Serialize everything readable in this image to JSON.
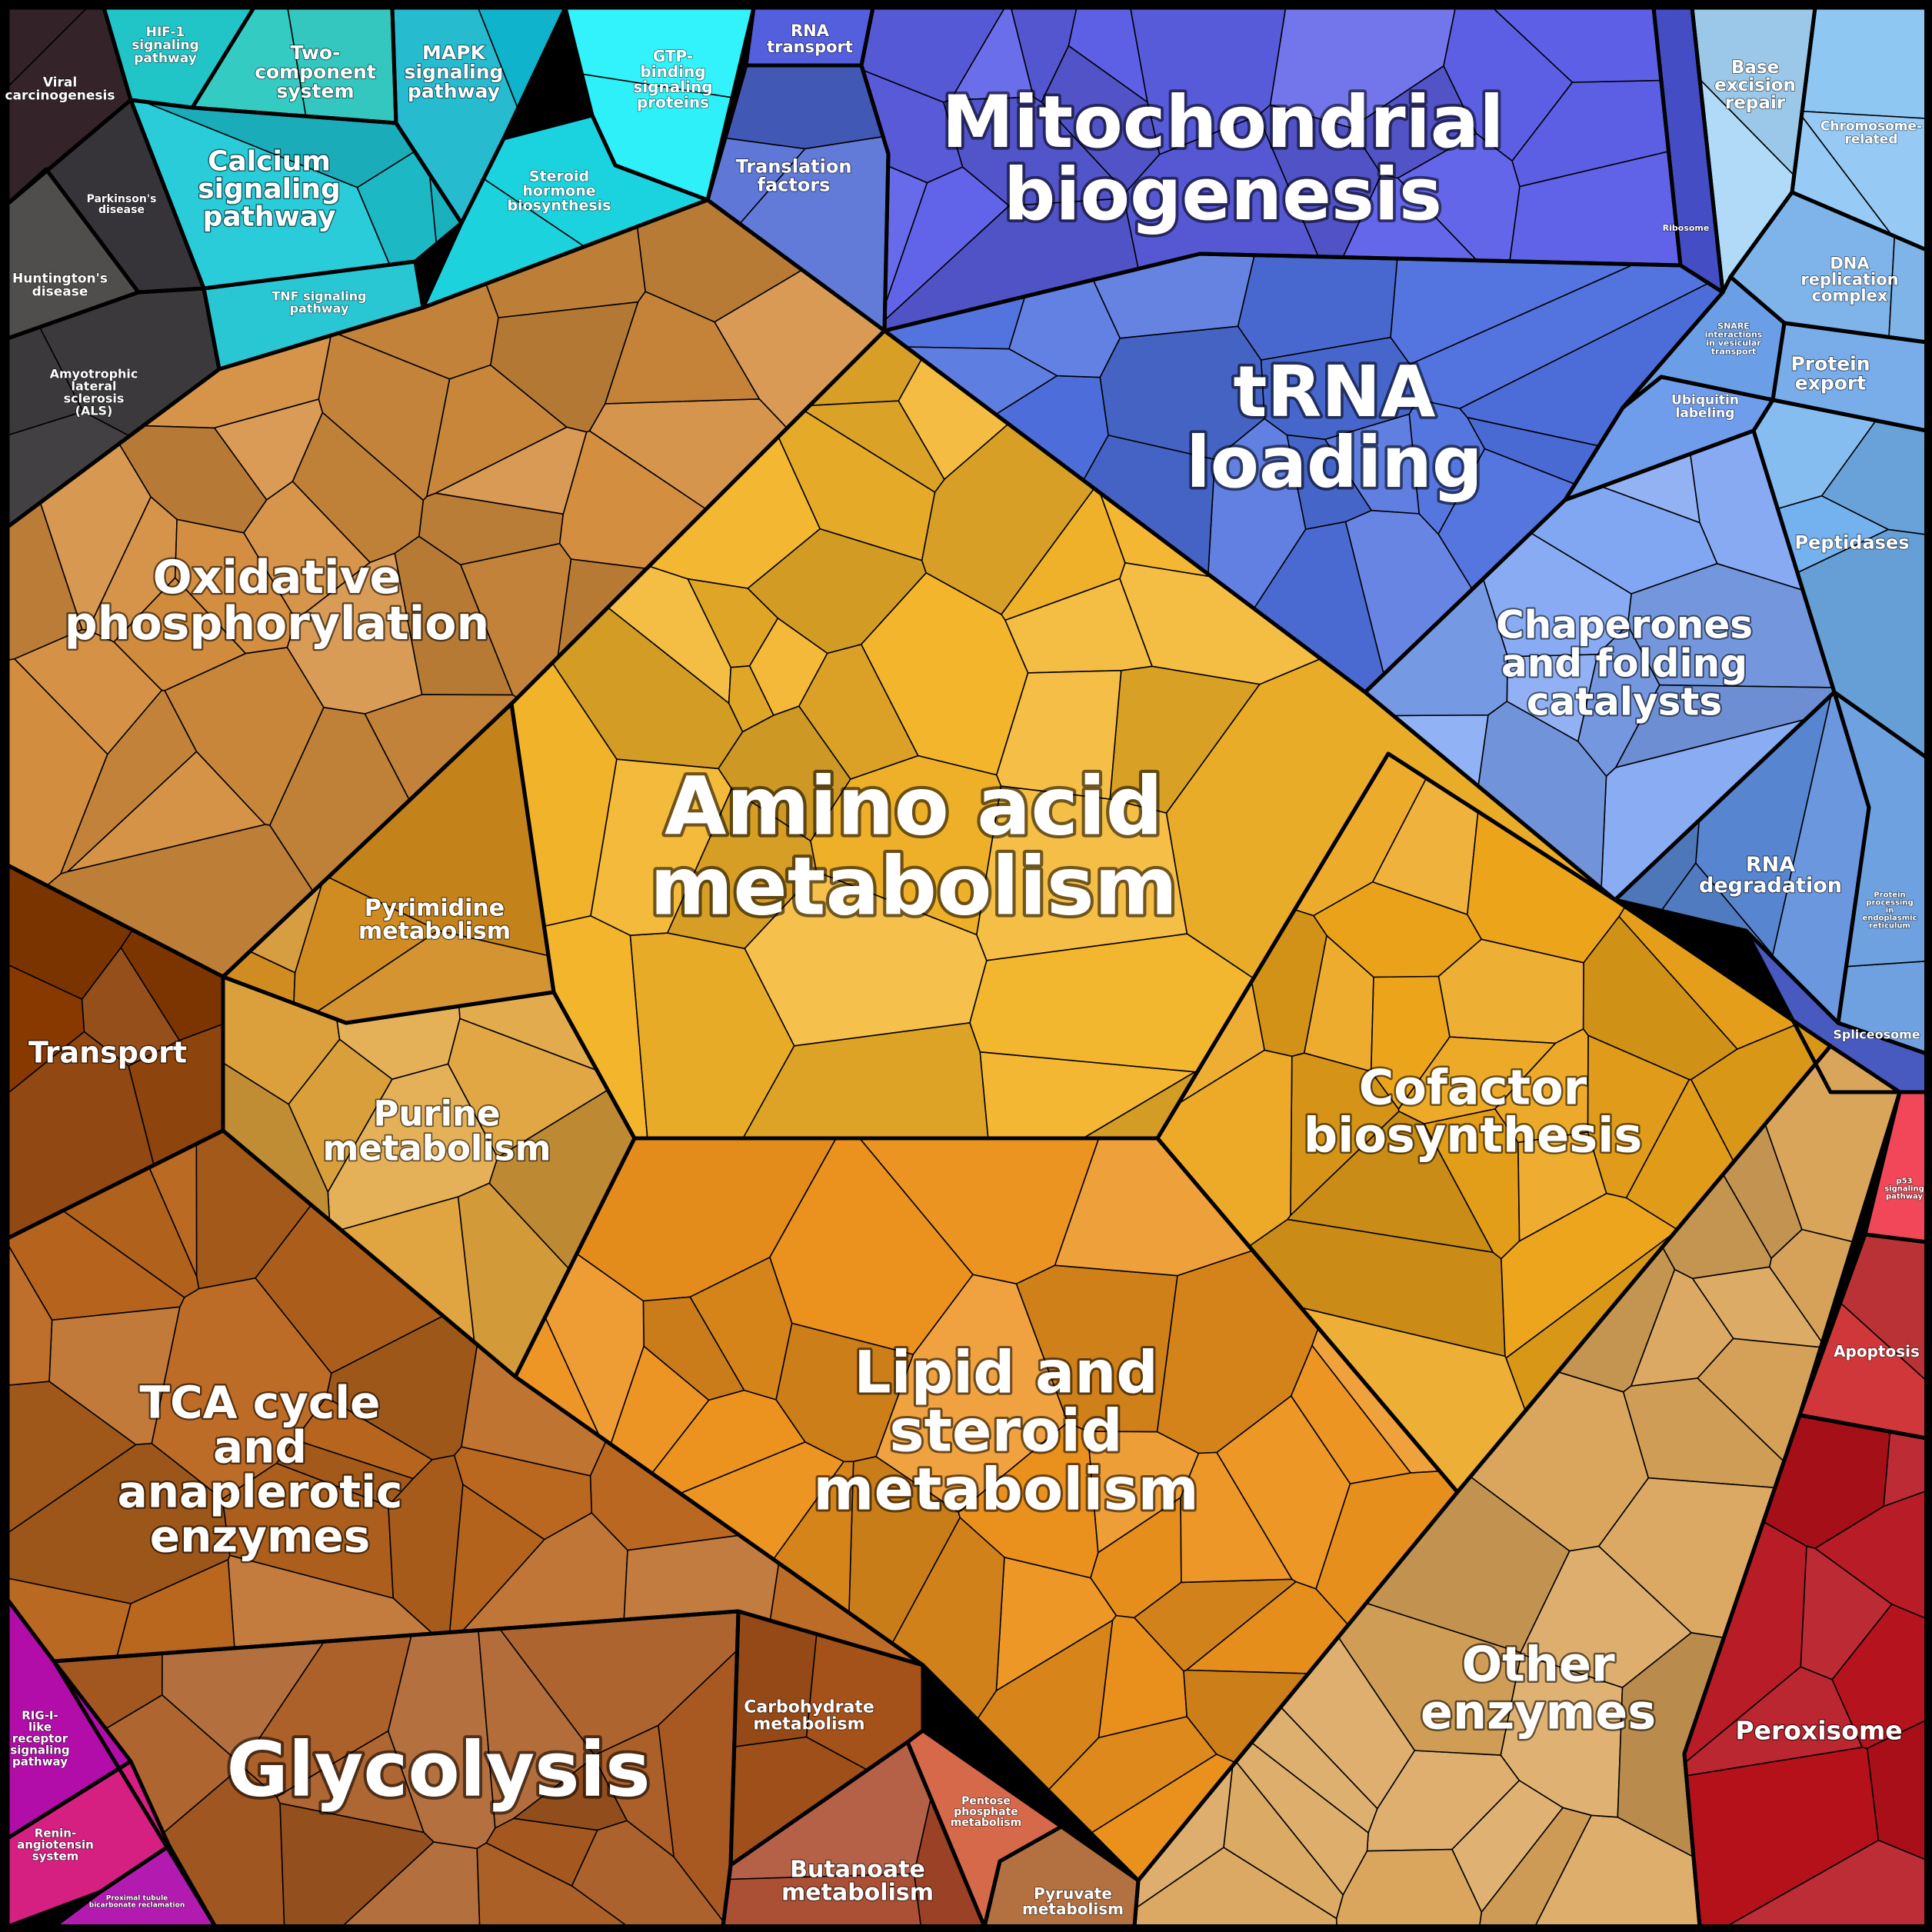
{
  "regions": [
    {
      "id": "viral-carcinogenesis",
      "color": "#3d2a30",
      "label": [
        "Viral",
        "carcinogenesis"
      ]
    },
    {
      "id": "parkinsons-disease",
      "color": "#3b393e",
      "label": [
        "Parkinson's",
        "disease"
      ]
    },
    {
      "id": "huntingtons-disease",
      "color": "#3a3937",
      "label": [
        "Huntington's",
        "disease"
      ]
    },
    {
      "id": "als",
      "color": "#3e3c3e",
      "label": [
        "Amyotrophic",
        "lateral",
        "sclerosis",
        "(ALS)"
      ]
    },
    {
      "id": "hif1-signaling",
      "color": "#22c9cc",
      "label": [
        "HIF-1",
        "signaling",
        "pathway"
      ]
    },
    {
      "id": "two-component-system",
      "color": "#37d8d0",
      "label": [
        "Two-",
        "component",
        "system"
      ]
    },
    {
      "id": "mapk-signaling",
      "color": "#08b1c9",
      "label": [
        "MAPK",
        "signaling",
        "pathway"
      ]
    },
    {
      "id": "calcium-signaling",
      "color": "#1ec9d6",
      "label": [
        "Calcium",
        "signaling",
        "pathway"
      ]
    },
    {
      "id": "tnf-signaling",
      "color": "#22c6d2",
      "label": [
        "TNF signaling",
        "pathway"
      ]
    },
    {
      "id": "gtp-binding",
      "color": "#2ff3fb",
      "label": [
        "GTP-",
        "binding",
        "signaling",
        "proteins"
      ]
    },
    {
      "id": "steroid-hormone",
      "color": "#1de2ee",
      "label": [
        "Steroid",
        "hormone",
        "biosynthesis"
      ]
    },
    {
      "id": "rna-transport",
      "color": "#4c57dc",
      "label": [
        "RNA",
        "transport"
      ]
    },
    {
      "id": "translation-factors",
      "color": "#4c68d2",
      "label": [
        "Translation",
        "factors"
      ]
    },
    {
      "id": "mitochondrial-biogenesis",
      "color": "#5e61e8",
      "label": [
        "Mitochondrial",
        "biogenesis"
      ]
    },
    {
      "id": "ribosome",
      "color": "#4e58e0",
      "label": [
        "Ribosome"
      ]
    },
    {
      "id": "trna-loading",
      "color": "#4e70de",
      "label": [
        "tRNA",
        "loading"
      ]
    },
    {
      "id": "base-excision-repair",
      "color": "#a4d4f6",
      "label": [
        "Base",
        "excision",
        "repair"
      ]
    },
    {
      "id": "chromosome-related",
      "color": "#86c2f2",
      "label": [
        "Chromosome-",
        "related"
      ]
    },
    {
      "id": "dna-replication",
      "color": "#78b0e8",
      "label": [
        "DNA",
        "replication",
        "complex"
      ]
    },
    {
      "id": "snare-interactions",
      "color": "#6a9fe8",
      "label": [
        "SNARE",
        "interactions",
        "in vesicular",
        "transport"
      ]
    },
    {
      "id": "protein-export",
      "color": "#6aa4e6",
      "label": [
        "Protein",
        "export"
      ]
    },
    {
      "id": "ubiquitin-labeling",
      "color": "#5f92ea",
      "label": [
        "Ubiquitin",
        "labeling"
      ]
    },
    {
      "id": "peptidases",
      "color": "#72b2ef",
      "label": [
        "Peptidases"
      ]
    },
    {
      "id": "chaperones",
      "color": "#7ea4f2",
      "label": [
        "Chaperones",
        "and folding",
        "catalysts"
      ]
    },
    {
      "id": "rna-degradation",
      "color": "#5d8ddc",
      "label": [
        "RNA",
        "degradation"
      ]
    },
    {
      "id": "protein-processing-er",
      "color": "#5a94dc",
      "label": [
        "Protein",
        "processing",
        "in",
        "endoplasmic",
        "reticulum"
      ]
    },
    {
      "id": "spliceosome",
      "color": "#3d4fbc",
      "label": [
        "Spliceosome"
      ]
    },
    {
      "id": "oxidative-phosphorylation",
      "color": "#d38d3e",
      "label": [
        "Oxidative",
        "phosphorylation"
      ]
    },
    {
      "id": "amino-acid-metabolism",
      "color": "#f3b42a",
      "label": [
        "Amino acid",
        "metabolism"
      ]
    },
    {
      "id": "pyrimidine-metabolism",
      "color": "#cf8a1d",
      "label": [
        "Pyrimidine",
        "metabolism"
      ]
    },
    {
      "id": "purine-metabolism",
      "color": "#dfa33c",
      "label": [
        "Purine",
        "metabolism"
      ]
    },
    {
      "id": "cofactor-biosynthesis",
      "color": "#eca41a",
      "label": [
        "Cofactor",
        "biosynthesis"
      ]
    },
    {
      "id": "lipid-steroid-metabolism",
      "color": "#ec921d",
      "label": [
        "Lipid and",
        "steroid",
        "metabolism"
      ]
    },
    {
      "id": "transport",
      "color": "#883a00",
      "label": [
        "Transport"
      ]
    },
    {
      "id": "tca-cycle",
      "color": "#b9661e",
      "label": [
        "TCA cycle",
        "and",
        "anaplerotic",
        "enzymes"
      ]
    },
    {
      "id": "glycolysis",
      "color": "#a85a21",
      "label": [
        "Glycolysis"
      ]
    },
    {
      "id": "carbohydrate-metabolism",
      "color": "#a6521a",
      "label": [
        "Carbohydrate",
        "metabolism"
      ]
    },
    {
      "id": "pentose-phosphate",
      "color": "#d45c3b",
      "label": [
        "Pentose",
        "phosphate",
        "metabolism"
      ]
    },
    {
      "id": "butanoate-metabolism",
      "color": "#a8472a",
      "label": [
        "Butanoate",
        "metabolism"
      ]
    },
    {
      "id": "pyruvate-metabolism",
      "color": "#a85c25",
      "label": [
        "Pyruvate",
        "metabolism"
      ]
    },
    {
      "id": "rig-i-signaling",
      "color": "#b10aa8",
      "label": [
        "RIG-I-",
        "like",
        "receptor",
        "signaling",
        "pathway"
      ]
    },
    {
      "id": "renin-angiotensin",
      "color": "#e12288",
      "label": [
        "Renin-",
        "angiotensin",
        "system"
      ]
    },
    {
      "id": "proximal-tubule",
      "color": "#c51ec2",
      "label": [
        "Proximal tubule",
        "bicarbonate reclamation"
      ]
    },
    {
      "id": "other-enzymes",
      "color": "#d9a45a",
      "label": [
        "Other",
        "enzymes"
      ]
    },
    {
      "id": "p53-signaling",
      "color": "#f03a4c",
      "label": [
        "p53",
        "signaling",
        "pathway"
      ]
    },
    {
      "id": "apoptosis",
      "color": "#d93a3e",
      "label": [
        "Apoptosis"
      ]
    },
    {
      "id": "peroxisome",
      "color": "#b4101a",
      "label": [
        "Peroxisome"
      ]
    }
  ]
}
